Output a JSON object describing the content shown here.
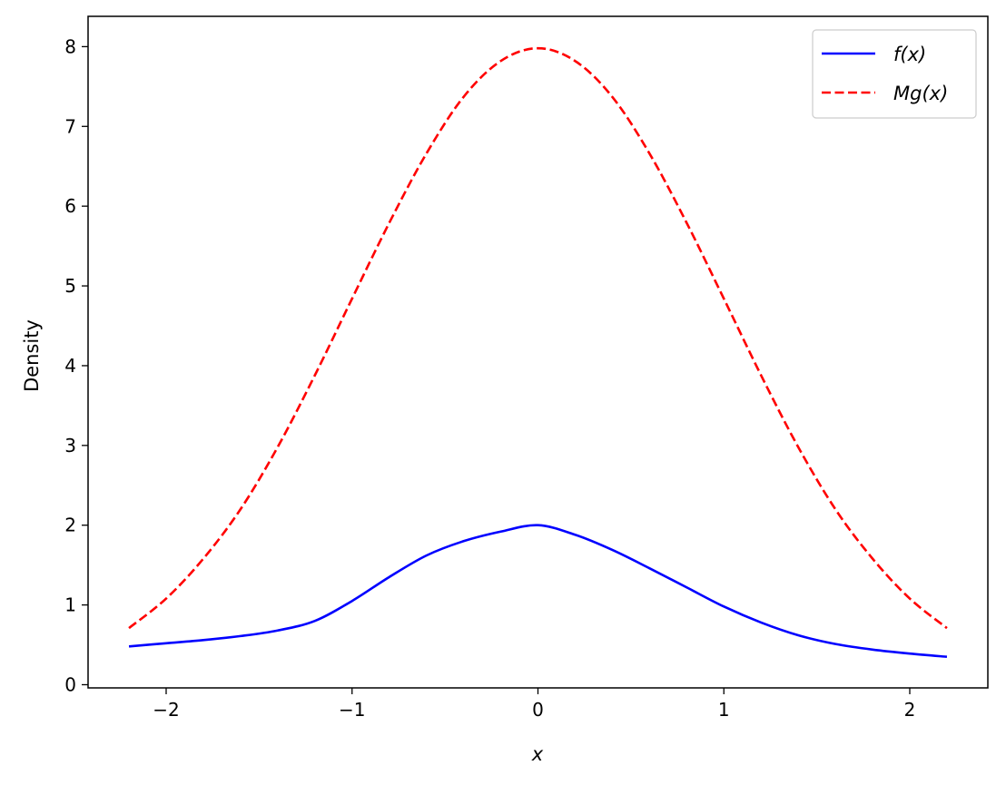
{
  "chart_data": {
    "type": "line",
    "title": "",
    "xlabel": "x",
    "ylabel": "Density",
    "xlim": [
      -2.42,
      2.42
    ],
    "ylim": [
      -0.04,
      8.38
    ],
    "xticks": [
      -2,
      -1,
      0,
      1,
      2
    ],
    "xtick_labels": [
      "−2",
      "−1",
      "0",
      "1",
      "2"
    ],
    "yticks": [
      0,
      1,
      2,
      3,
      4,
      5,
      6,
      7,
      8
    ],
    "ytick_labels": [
      "0",
      "1",
      "2",
      "3",
      "4",
      "5",
      "6",
      "7",
      "8"
    ],
    "grid": false,
    "legend_position": "top-right",
    "series": [
      {
        "name": "f(x)",
        "color": "#0000ff",
        "linestyle": "solid",
        "x": [
          -2.2,
          -2.0,
          -1.8,
          -1.6,
          -1.4,
          -1.2,
          -1.0,
          -0.8,
          -0.6,
          -0.4,
          -0.2,
          0.0,
          0.2,
          0.4,
          0.6,
          0.8,
          1.0,
          1.2,
          1.4,
          1.6,
          1.8,
          2.0,
          2.2
        ],
        "y": [
          0.48,
          0.52,
          0.56,
          0.61,
          0.68,
          0.8,
          1.05,
          1.35,
          1.62,
          1.8,
          1.92,
          2.0,
          1.88,
          1.69,
          1.46,
          1.22,
          0.98,
          0.78,
          0.62,
          0.51,
          0.44,
          0.39,
          0.35
        ]
      },
      {
        "name": "Mg(x)",
        "color": "#ff0000",
        "linestyle": "dashed",
        "x": [
          -2.2,
          -2.0,
          -1.8,
          -1.6,
          -1.4,
          -1.2,
          -1.0,
          -0.8,
          -0.6,
          -0.4,
          -0.2,
          0.0,
          0.2,
          0.4,
          0.6,
          0.8,
          1.0,
          1.2,
          1.4,
          1.6,
          1.8,
          2.0,
          2.2
        ],
        "y": [
          0.71,
          1.08,
          1.58,
          2.2,
          2.98,
          3.88,
          4.84,
          5.79,
          6.66,
          7.37,
          7.82,
          7.98,
          7.82,
          7.37,
          6.66,
          5.79,
          4.84,
          3.88,
          2.98,
          2.2,
          1.58,
          1.08,
          0.71
        ]
      }
    ]
  }
}
